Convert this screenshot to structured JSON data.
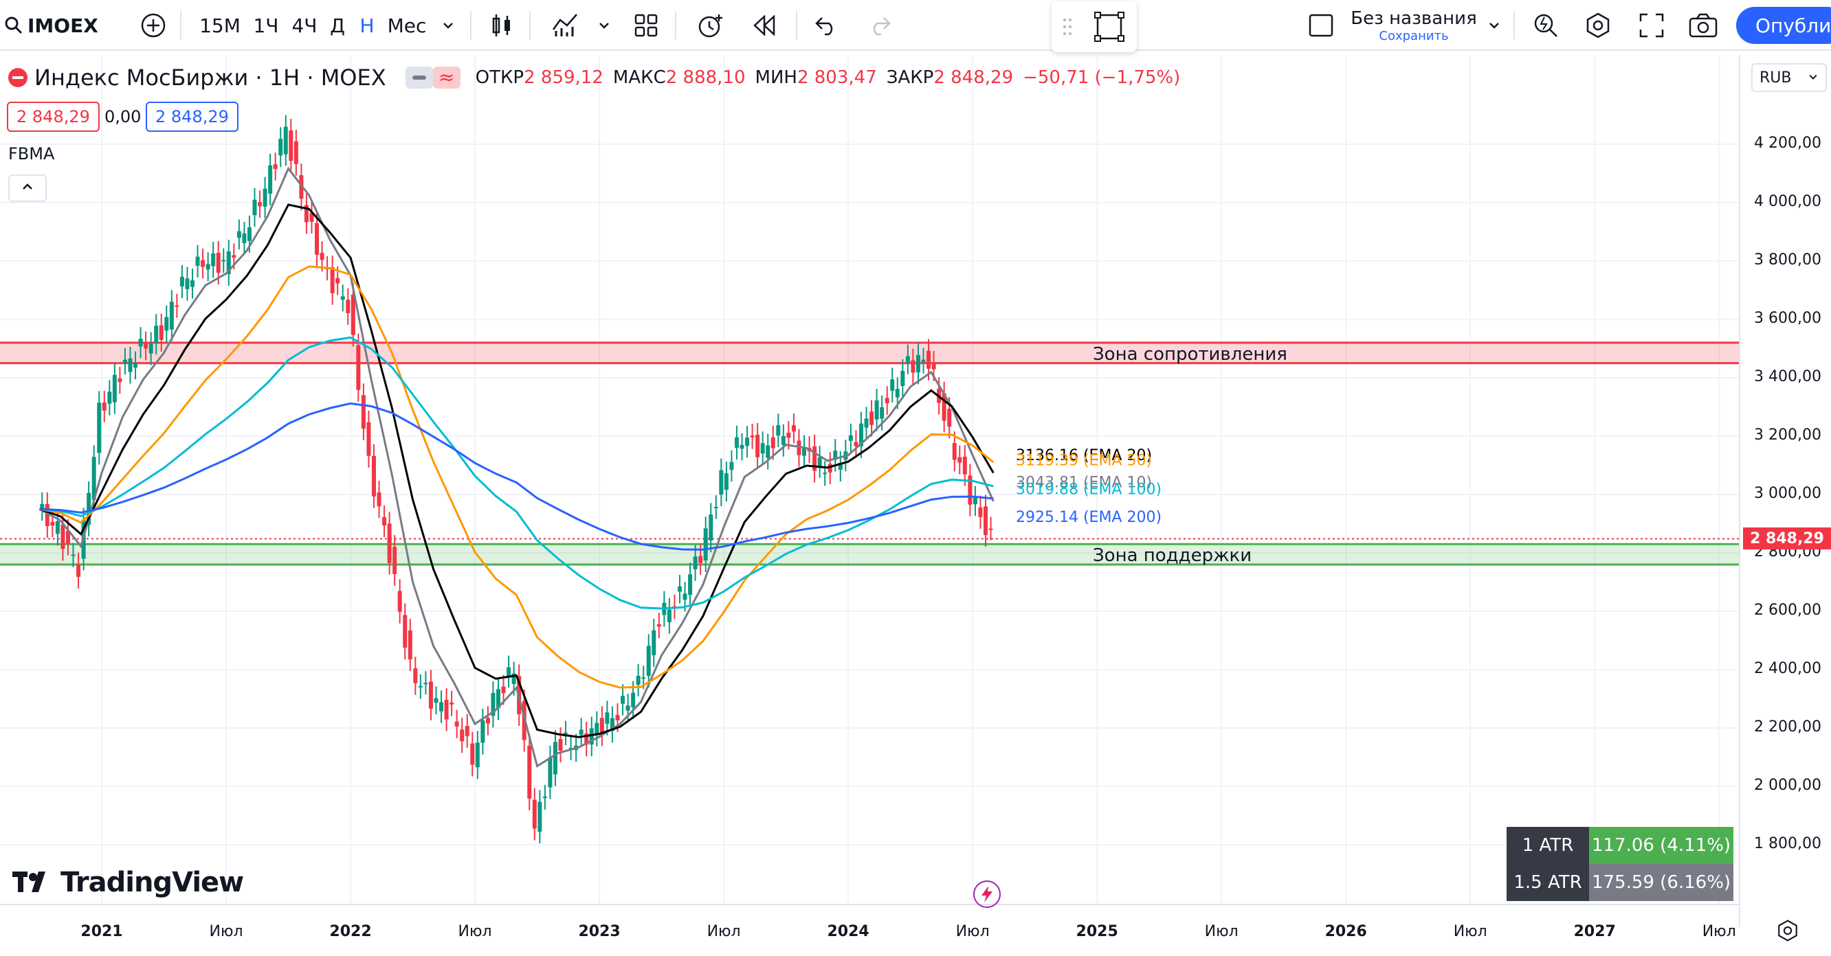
{
  "toolbar": {
    "symbol": "IMOEX",
    "intervals": [
      "15М",
      "1Ч",
      "4Ч",
      "Д",
      "Н",
      "Мес"
    ],
    "active_interval": "Н",
    "layout_name": "Без названия",
    "layout_save": "Сохранить",
    "publish_label": "Опубликовать",
    "icons": [
      "search-icon",
      "add-symbol-icon",
      "chevron-down-icon",
      "candles-icon",
      "indicators-icon",
      "templates-icon",
      "alert-icon",
      "replay-icon",
      "undo-icon",
      "redo-icon",
      "drag-handle-icon",
      "rectangle-tool-icon",
      "layout-icon",
      "quick-search-icon",
      "settings-icon",
      "fullscreen-icon",
      "camera-icon"
    ]
  },
  "legend": {
    "title": "Индекс МосБиржи · 1Н · MOEX",
    "open_label": "ОТКР",
    "open": "2 859,12",
    "high_label": "МАКС",
    "high": "2 888,10",
    "low_label": "МИН",
    "low": "2 803,47",
    "close_label": "ЗАКР",
    "close": "2 848,29",
    "change": "−50,71 (−1,75%)",
    "bid": "2 848,29",
    "spread": "0,00",
    "ask": "2 848,29",
    "indicator": "FBMA",
    "currency": "RUB"
  },
  "colors": {
    "up": "#089981",
    "down": "#f23645",
    "ema10": "#787b86",
    "ema20": "#000000",
    "ema50": "#ff9800",
    "ema100": "#00bcd4",
    "ema200": "#2962ff",
    "resistance": "#f23645",
    "support": "#4caf50"
  },
  "chart_data": {
    "type": "line",
    "title": "Индекс МосБиржи · 1Н · MOEX",
    "ylim": [
      1600,
      4400
    ],
    "y_ticks": [
      "4 200,00",
      "4 000,00",
      "3 800,00",
      "3 600,00",
      "3 400,00",
      "3 200,00",
      "3 000,00",
      "2 800,00",
      "2 600,00",
      "2 400,00",
      "2 200,00",
      "2 000,00",
      "1 800,00"
    ],
    "y_tick_values": [
      4200,
      4000,
      3800,
      3600,
      3400,
      3200,
      3000,
      2800,
      2600,
      2400,
      2200,
      2000,
      1800
    ],
    "x_ticks": [
      "2021",
      "Июл",
      "2022",
      "Июл",
      "2023",
      "Июл",
      "2024",
      "Июл",
      "2025",
      "Июл",
      "2026",
      "Июл",
      "2027",
      "Июл"
    ],
    "last_price_label": "2 848,29",
    "last_price": 2848.29,
    "price_path": [
      [
        "2020-10",
        2950
      ],
      [
        "2020-11",
        2880
      ],
      [
        "2020-12",
        2750
      ],
      [
        "2021-01",
        3280
      ],
      [
        "2021-02",
        3420
      ],
      [
        "2021-03",
        3500
      ],
      [
        "2021-04",
        3560
      ],
      [
        "2021-05",
        3720
      ],
      [
        "2021-06",
        3800
      ],
      [
        "2021-07",
        3790
      ],
      [
        "2021-08",
        3900
      ],
      [
        "2021-09",
        4050
      ],
      [
        "2021-10",
        4250
      ],
      [
        "2021-11",
        3950
      ],
      [
        "2021-12",
        3750
      ],
      [
        "2022-01",
        3650
      ],
      [
        "2022-02",
        3100
      ],
      [
        "2022-03",
        2800
      ],
      [
        "2022-04",
        2400
      ],
      [
        "2022-05",
        2300
      ],
      [
        "2022-06",
        2250
      ],
      [
        "2022-07",
        2100
      ],
      [
        "2022-08",
        2300
      ],
      [
        "2022-09",
        2400
      ],
      [
        "2022-10",
        1850
      ],
      [
        "2022-11",
        2150
      ],
      [
        "2022-12",
        2150
      ],
      [
        "2023-01",
        2200
      ],
      [
        "2023-02",
        2250
      ],
      [
        "2023-03",
        2350
      ],
      [
        "2023-04",
        2580
      ],
      [
        "2023-05",
        2650
      ],
      [
        "2023-06",
        2800
      ],
      [
        "2023-07",
        3050
      ],
      [
        "2023-08",
        3200
      ],
      [
        "2023-09",
        3150
      ],
      [
        "2023-10",
        3220
      ],
      [
        "2023-11",
        3150
      ],
      [
        "2023-12",
        3080
      ],
      [
        "2024-01",
        3150
      ],
      [
        "2024-02",
        3250
      ],
      [
        "2024-03",
        3330
      ],
      [
        "2024-04",
        3450
      ],
      [
        "2024-05",
        3460
      ],
      [
        "2024-06",
        3200
      ],
      [
        "2024-07",
        3000
      ],
      [
        "2024-08",
        2848
      ]
    ],
    "series": [
      {
        "name": "EMA 20",
        "label": "3136.16 (EMA 20)",
        "value": 3136.16
      },
      {
        "name": "EMA 50",
        "label": "3119.39 (EMA 50)",
        "value": 3119.39
      },
      {
        "name": "EMA 10",
        "label": "3043.81 (EMA 10)",
        "value": 3043.81
      },
      {
        "name": "EMA 100",
        "label": "3019.88 (EMA 100)",
        "value": 3019.88
      },
      {
        "name": "EMA 200",
        "label": "2925.14 (EMA 200)",
        "value": 2925.14
      }
    ],
    "zones": [
      {
        "label": "Зона сопротивления",
        "from": 3450,
        "to": 3520
      },
      {
        "label": "Зона поддержки",
        "from": 2760,
        "to": 2830
      }
    ],
    "atr": [
      {
        "label": "1 ATR",
        "value": "117.06 (4.11%)"
      },
      {
        "label": "1.5 ATR",
        "value": "175.59 (6.16%)"
      }
    ]
  },
  "watermark": "TradingView"
}
